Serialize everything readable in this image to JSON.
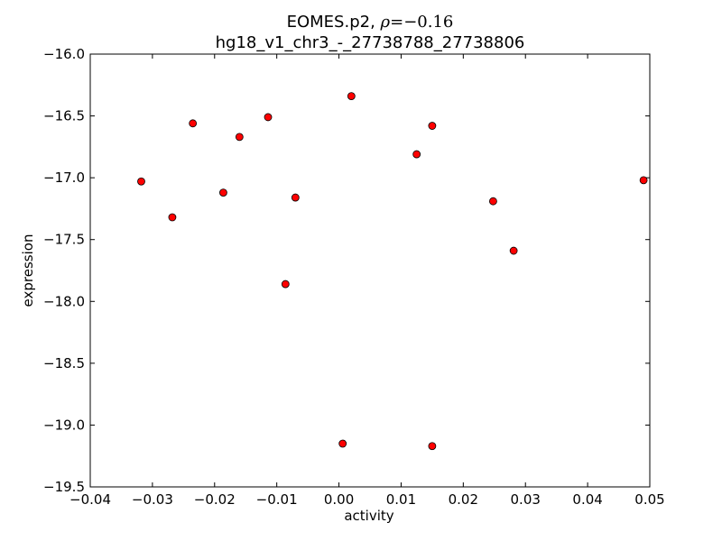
{
  "chart_data": {
    "type": "scatter",
    "title_prefix": "EOMES.p2, ",
    "title_rho_symbol": "ρ",
    "title_rho_value": "=−0.16",
    "subtitle": "hg18_v1_chr3_-_27738788_27738806",
    "xlabel": "activity",
    "ylabel": "expression",
    "xlim": [
      -0.04,
      0.05
    ],
    "ylim": [
      -19.5,
      -16.0
    ],
    "x_ticks": [
      -0.04,
      -0.03,
      -0.02,
      -0.01,
      0.0,
      0.01,
      0.02,
      0.03,
      0.04,
      0.05
    ],
    "x_tick_labels": [
      "−0.04",
      "−0.03",
      "−0.02",
      "−0.01",
      "0.00",
      "0.01",
      "0.02",
      "0.03",
      "0.04",
      "0.05"
    ],
    "y_ticks": [
      -16.0,
      -16.5,
      -17.0,
      -17.5,
      -18.0,
      -18.5,
      -19.0,
      -19.5
    ],
    "y_tick_labels": [
      "−16.0",
      "−16.5",
      "−17.0",
      "−17.5",
      "−18.0",
      "−18.5",
      "−19.0",
      "−19.5"
    ],
    "grid": false,
    "marker_color": "#ff0000",
    "marker_edge_color": "#000000",
    "points": [
      {
        "x": -0.0318,
        "y": -17.03
      },
      {
        "x": -0.0268,
        "y": -17.32
      },
      {
        "x": -0.0235,
        "y": -16.56
      },
      {
        "x": -0.0186,
        "y": -17.12
      },
      {
        "x": -0.016,
        "y": -16.67
      },
      {
        "x": -0.0114,
        "y": -16.51
      },
      {
        "x": -0.0086,
        "y": -17.86
      },
      {
        "x": -0.007,
        "y": -17.16
      },
      {
        "x": 0.0006,
        "y": -19.15
      },
      {
        "x": 0.002,
        "y": -16.34
      },
      {
        "x": 0.0125,
        "y": -16.81
      },
      {
        "x": 0.015,
        "y": -16.58
      },
      {
        "x": 0.015,
        "y": -19.17
      },
      {
        "x": 0.0248,
        "y": -17.19
      },
      {
        "x": 0.0281,
        "y": -17.59
      },
      {
        "x": 0.049,
        "y": -17.02
      }
    ]
  }
}
